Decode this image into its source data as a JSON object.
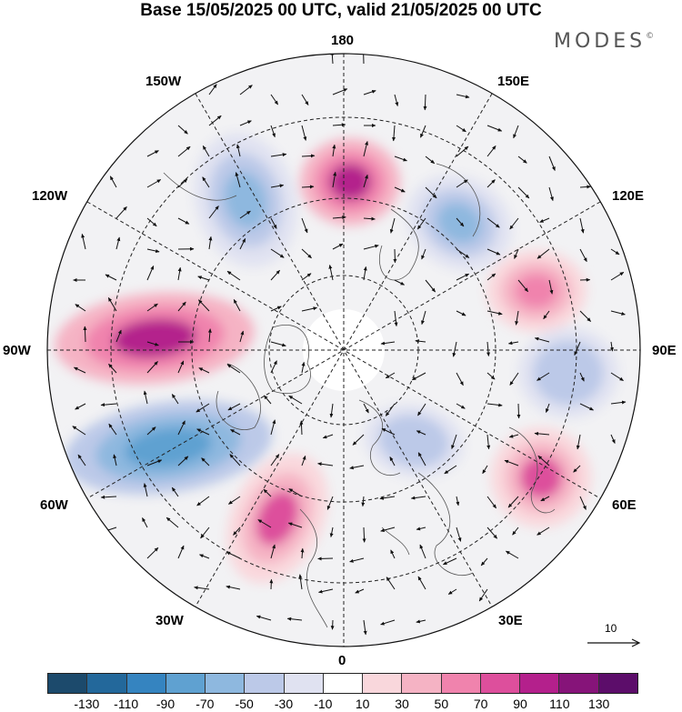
{
  "title": "Base 15/05/2025 00 UTC, valid 21/05/2025 00 UTC",
  "brand": "MODES",
  "brand_mark": "©",
  "longitude_labels": {
    "n180": "180",
    "w150": "150W",
    "e150": "150E",
    "w120": "120W",
    "e120": "120E",
    "w90": "90W",
    "e90": "90E",
    "w60": "60W",
    "e60": "60E",
    "w30": "30W",
    "e30": "30E",
    "s0": "0"
  },
  "reference_vector": {
    "value": "10"
  },
  "colorbar": {
    "ticks": [
      "-130",
      "-110",
      "-90",
      "-70",
      "-50",
      "-30",
      "-10",
      "10",
      "30",
      "50",
      "70",
      "90",
      "110",
      "130"
    ],
    "colors": [
      "#1c4a6c",
      "#23689b",
      "#3584c0",
      "#5fa1d1",
      "#8eb8df",
      "#bcc9e8",
      "#e0e2f1",
      "#ffffff",
      "#f9d7dc",
      "#f5b3c4",
      "#f083ad",
      "#dd4f9c",
      "#b4208c",
      "#861479",
      "#5c0d6a"
    ]
  },
  "anomaly_features": [
    {
      "name": "neg-n-pacific",
      "sign": "negative",
      "peak": -70
    },
    {
      "name": "pos-bering",
      "sign": "positive",
      "peak": 90
    },
    {
      "name": "neg-e-siberia",
      "sign": "negative",
      "peak": -70
    },
    {
      "name": "pos-n-america",
      "sign": "positive",
      "peak": 90
    },
    {
      "name": "neg-w-atlantic",
      "sign": "negative",
      "peak": -90
    },
    {
      "name": "pos-n-atlantic",
      "sign": "positive",
      "peak": 70
    },
    {
      "name": "neg-europe",
      "sign": "negative",
      "peak": -50
    },
    {
      "name": "pos-ural",
      "sign": "positive",
      "peak": 70
    },
    {
      "name": "neg-c-asia",
      "sign": "negative",
      "peak": -50
    },
    {
      "name": "pos-c-siberia",
      "sign": "positive",
      "peak": 50
    }
  ]
}
